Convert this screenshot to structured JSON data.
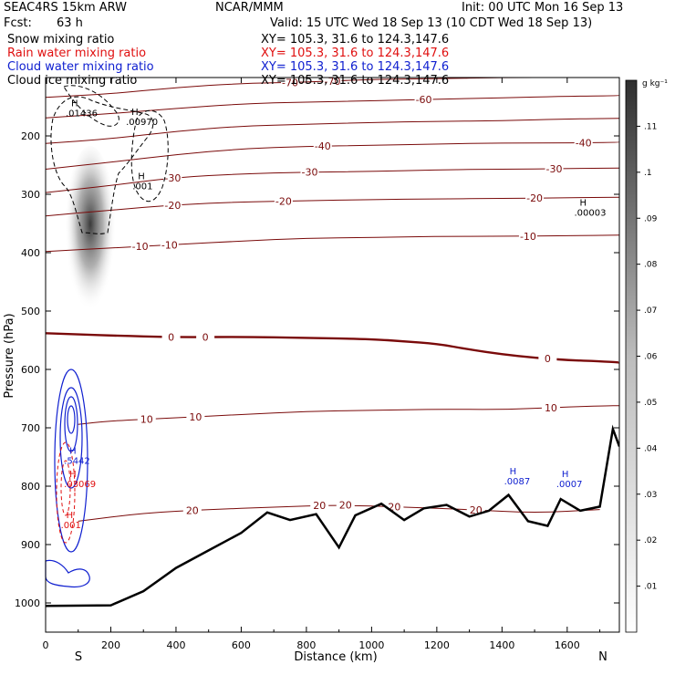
{
  "header": {
    "model": "SEAC4RS 15km ARW",
    "org": "NCAR/MMM",
    "init": "Init: 00 UTC Mon 16 Sep 13",
    "fcst_label": "Fcst:",
    "fcst_value": "63 h",
    "valid": "Valid: 15 UTC Wed 18 Sep 13 (10 CDT Wed 18 Sep 13)"
  },
  "fields": [
    {
      "label": "Snow mixing ratio",
      "xy": "XY= 105.3, 31.6 to 124.3,147.6",
      "color": "#000000"
    },
    {
      "label": "Rain water mixing ratio",
      "xy": "XY= 105.3, 31.6 to 124.3,147.6",
      "color": "#e01010"
    },
    {
      "label": "Cloud water mixing ratio",
      "xy": "XY= 105.3, 31.6 to 124.3,147.6",
      "color": "#1020d0"
    },
    {
      "label": "Cloud ice mixing ratio",
      "xy": "XY= 105.3, 31.6 to 124.3,147.6",
      "color": "#000000"
    }
  ],
  "chart_data": {
    "type": "cross-section",
    "xlabel": "Distance (km)",
    "ylabel": "Pressure (hPa)",
    "xlim": [
      0,
      1760
    ],
    "ylim": [
      1050,
      100
    ],
    "x_ticks": [
      0,
      200,
      400,
      600,
      800,
      1000,
      1200,
      1400,
      1600
    ],
    "y_ticks": [
      200,
      300,
      400,
      500,
      600,
      700,
      800,
      900,
      1000
    ],
    "end_labels": {
      "left": "S",
      "right": "N"
    },
    "colorbar": {
      "unit": "g kg⁻¹",
      "ticks": [
        ".01",
        ".02",
        ".03",
        ".04",
        ".05",
        ".06",
        ".07",
        ".08",
        ".09",
        ".1",
        ".11"
      ],
      "max": 0.12
    },
    "temperature_contours": [
      {
        "value": -70,
        "labels": [
          {
            "x": 750,
            "text": "-70"
          },
          {
            "x": 880,
            "text": "-70"
          }
        ],
        "points": [
          [
            0,
            134
          ],
          [
            200,
            128
          ],
          [
            400,
            117
          ],
          [
            600,
            110
          ],
          [
            800,
            108
          ],
          [
            1000,
            103
          ],
          [
            1200,
            102
          ],
          [
            1400,
            100
          ],
          [
            1600,
            100
          ],
          [
            1760,
            98
          ]
        ]
      },
      {
        "value": -60,
        "labels": [
          {
            "x": 1160,
            "text": "-60"
          }
        ],
        "points": [
          [
            0,
            169
          ],
          [
            200,
            162
          ],
          [
            400,
            153
          ],
          [
            600,
            145
          ],
          [
            800,
            142
          ],
          [
            1000,
            140
          ],
          [
            1200,
            137
          ],
          [
            1400,
            135
          ],
          [
            1600,
            132
          ],
          [
            1760,
            131
          ]
        ]
      },
      {
        "value": -50,
        "labels": [],
        "points": [
          [
            0,
            213
          ],
          [
            200,
            205
          ],
          [
            400,
            192
          ],
          [
            600,
            183
          ],
          [
            800,
            180
          ],
          [
            1000,
            177
          ],
          [
            1200,
            175
          ],
          [
            1400,
            174
          ],
          [
            1600,
            171
          ],
          [
            1760,
            170
          ]
        ]
      },
      {
        "value": -40,
        "labels": [
          {
            "x": 850,
            "text": "-40"
          },
          {
            "x": 1650,
            "text": "-40"
          }
        ],
        "points": [
          [
            0,
            257
          ],
          [
            200,
            245
          ],
          [
            400,
            232
          ],
          [
            600,
            222
          ],
          [
            800,
            218
          ],
          [
            1000,
            216
          ],
          [
            1200,
            214
          ],
          [
            1400,
            212
          ],
          [
            1600,
            212
          ],
          [
            1760,
            211
          ]
        ]
      },
      {
        "value": -30,
        "labels": [
          {
            "x": 390,
            "text": "-30"
          },
          {
            "x": 810,
            "text": "-30"
          },
          {
            "x": 1560,
            "text": "-30"
          }
        ],
        "points": [
          [
            0,
            297
          ],
          [
            200,
            285
          ],
          [
            400,
            271
          ],
          [
            600,
            265
          ],
          [
            800,
            262
          ],
          [
            1000,
            261
          ],
          [
            1200,
            258
          ],
          [
            1400,
            257
          ],
          [
            1600,
            256
          ],
          [
            1760,
            255
          ]
        ]
      },
      {
        "value": -20,
        "labels": [
          {
            "x": 390,
            "text": "-20"
          },
          {
            "x": 730,
            "text": "-20"
          },
          {
            "x": 1500,
            "text": "-20"
          }
        ],
        "points": [
          [
            0,
            337
          ],
          [
            200,
            327
          ],
          [
            400,
            318
          ],
          [
            600,
            313
          ],
          [
            800,
            311
          ],
          [
            1000,
            309
          ],
          [
            1200,
            308
          ],
          [
            1400,
            307
          ],
          [
            1600,
            306
          ],
          [
            1760,
            305
          ]
        ]
      },
      {
        "value": -10,
        "labels": [
          {
            "x": 290,
            "text": "-10"
          },
          {
            "x": 380,
            "text": "-10"
          },
          {
            "x": 1480,
            "text": "-10"
          }
        ],
        "points": [
          [
            0,
            398
          ],
          [
            200,
            392
          ],
          [
            400,
            386
          ],
          [
            600,
            380
          ],
          [
            800,
            375
          ],
          [
            1000,
            374
          ],
          [
            1200,
            372
          ],
          [
            1400,
            372
          ],
          [
            1600,
            371
          ],
          [
            1760,
            370
          ]
        ]
      },
      {
        "value": 0,
        "labels": [
          {
            "x": 385,
            "text": "0"
          },
          {
            "x": 490,
            "text": "0"
          },
          {
            "x": 1540,
            "text": "0"
          }
        ],
        "points": [
          [
            0,
            538
          ],
          [
            200,
            542
          ],
          [
            400,
            545
          ],
          [
            600,
            544
          ],
          [
            800,
            546
          ],
          [
            1000,
            548
          ],
          [
            1100,
            552
          ],
          [
            1200,
            556
          ],
          [
            1300,
            566
          ],
          [
            1400,
            574
          ],
          [
            1500,
            580
          ],
          [
            1600,
            584
          ],
          [
            1700,
            586
          ],
          [
            1760,
            588
          ]
        ]
      },
      {
        "value": 10,
        "labels": [
          {
            "x": 310,
            "text": "10"
          },
          {
            "x": 460,
            "text": "10"
          },
          {
            "x": 1550,
            "text": "10"
          }
        ],
        "points": [
          [
            100,
            694
          ],
          [
            200,
            688
          ],
          [
            400,
            683
          ],
          [
            600,
            677
          ],
          [
            800,
            672
          ],
          [
            1000,
            670
          ],
          [
            1200,
            668
          ],
          [
            1400,
            669
          ],
          [
            1600,
            664
          ],
          [
            1760,
            662
          ]
        ]
      },
      {
        "value": 20,
        "labels": [
          {
            "x": 450,
            "text": "20"
          },
          {
            "x": 840,
            "text": "20"
          },
          {
            "x": 920,
            "text": "20"
          },
          {
            "x": 1070,
            "text": "20"
          },
          {
            "x": 1320,
            "text": "20"
          }
        ],
        "points": [
          [
            100,
            860
          ],
          [
            300,
            846
          ],
          [
            500,
            840
          ],
          [
            700,
            836
          ],
          [
            900,
            832
          ],
          [
            1100,
            836
          ],
          [
            1300,
            840
          ],
          [
            1500,
            846
          ],
          [
            1700,
            840
          ]
        ]
      }
    ],
    "terrain": [
      [
        0,
        1005
      ],
      [
        200,
        1004
      ],
      [
        300,
        980
      ],
      [
        400,
        940
      ],
      [
        500,
        910
      ],
      [
        600,
        880
      ],
      [
        680,
        845
      ],
      [
        750,
        858
      ],
      [
        830,
        848
      ],
      [
        900,
        905
      ],
      [
        950,
        850
      ],
      [
        1030,
        830
      ],
      [
        1100,
        858
      ],
      [
        1160,
        838
      ],
      [
        1230,
        832
      ],
      [
        1300,
        852
      ],
      [
        1360,
        842
      ],
      [
        1420,
        815
      ],
      [
        1480,
        860
      ],
      [
        1540,
        868
      ],
      [
        1580,
        822
      ],
      [
        1640,
        842
      ],
      [
        1700,
        835
      ],
      [
        1740,
        702
      ],
      [
        1760,
        732
      ]
    ],
    "maxima_labels": [
      {
        "x": 95,
        "p": 165,
        "text": ".01436",
        "color": "#000000"
      },
      {
        "x": 280,
        "p": 180,
        "text": ".00970",
        "color": "#000000"
      },
      {
        "x": 300,
        "p": 290,
        "text": ".001",
        "color": "#000000"
      },
      {
        "x": 1655,
        "p": 335,
        "text": ".00003",
        "color": "#000000"
      },
      {
        "x": 90,
        "p": 760,
        "text": ".5442",
        "color": "#1020d0"
      },
      {
        "x": 90,
        "p": 800,
        "text": ".03069",
        "color": "#e01010"
      },
      {
        "x": 1440,
        "p": 795,
        "text": ".0087",
        "color": "#1020d0"
      },
      {
        "x": 1600,
        "p": 800,
        "text": ".0007",
        "color": "#1020d0"
      },
      {
        "x": 80,
        "p": 870,
        "text": ".001",
        "color": "#e01010"
      }
    ]
  }
}
